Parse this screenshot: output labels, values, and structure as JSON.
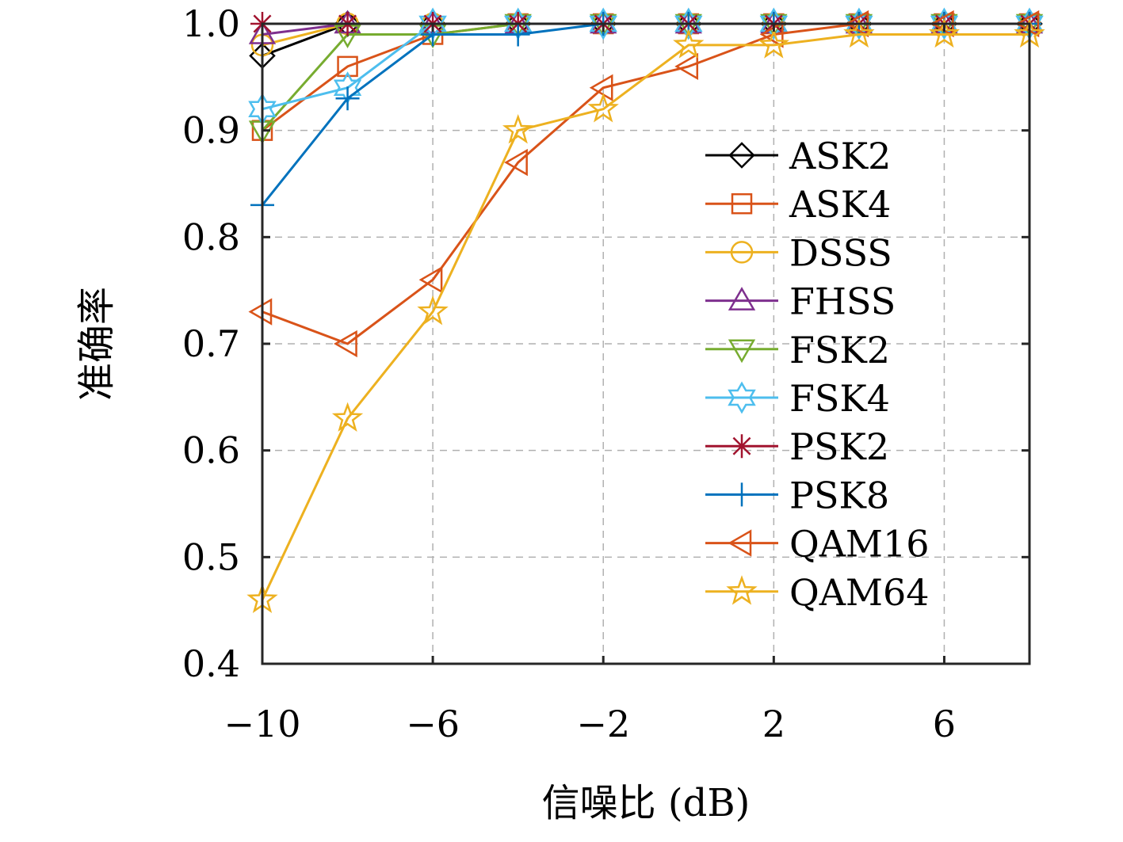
{
  "chart_data": {
    "type": "line",
    "title": "",
    "xlabel": "信噪比 (dB)",
    "ylabel": "准确率",
    "xlim": [
      -10,
      8
    ],
    "ylim": [
      0.4,
      1.0
    ],
    "xticks": [
      -10,
      -6,
      -2,
      2,
      6
    ],
    "xtick_labels": [
      "−10",
      "−6",
      "−2",
      "2",
      "6"
    ],
    "yticks": [
      0.4,
      0.5,
      0.6,
      0.7,
      0.8,
      0.9,
      1.0
    ],
    "ytick_labels": [
      "0.4",
      "0.5",
      "0.6",
      "0.7",
      "0.8",
      "0.9",
      "1.0"
    ],
    "grid": true,
    "legend_position": "right",
    "x": [
      -10,
      -8,
      -6,
      -4,
      -2,
      0,
      2,
      4,
      6,
      8
    ],
    "series": [
      {
        "name": "ASK2",
        "color": "#000000",
        "marker": "diamond",
        "values": [
          0.97,
          1.0,
          1.0,
          1.0,
          1.0,
          1.0,
          1.0,
          1.0,
          1.0,
          1.0
        ]
      },
      {
        "name": "ASK4",
        "color": "#D95319",
        "marker": "square",
        "values": [
          0.9,
          0.96,
          0.99,
          1.0,
          1.0,
          1.0,
          1.0,
          1.0,
          1.0,
          1.0
        ]
      },
      {
        "name": "DSSS",
        "color": "#EDB120",
        "marker": "circle",
        "values": [
          0.98,
          1.0,
          1.0,
          1.0,
          1.0,
          1.0,
          1.0,
          1.0,
          1.0,
          1.0
        ]
      },
      {
        "name": "FHSS",
        "color": "#7E2F8E",
        "marker": "triangle-up",
        "values": [
          0.99,
          1.0,
          1.0,
          1.0,
          1.0,
          1.0,
          1.0,
          1.0,
          1.0,
          1.0
        ]
      },
      {
        "name": "FSK2",
        "color": "#77AC30",
        "marker": "triangle-down",
        "values": [
          0.9,
          0.99,
          0.99,
          1.0,
          1.0,
          1.0,
          1.0,
          1.0,
          1.0,
          1.0
        ]
      },
      {
        "name": "FSK4",
        "color": "#4DBEEE",
        "marker": "hexagram",
        "values": [
          0.92,
          0.94,
          1.0,
          1.0,
          1.0,
          1.0,
          1.0,
          1.0,
          1.0,
          1.0
        ]
      },
      {
        "name": "PSK2",
        "color": "#A2142F",
        "marker": "asterisk",
        "values": [
          1.0,
          1.0,
          1.0,
          1.0,
          1.0,
          1.0,
          1.0,
          1.0,
          1.0,
          1.0
        ]
      },
      {
        "name": "PSK8",
        "color": "#0072BD",
        "marker": "plus",
        "values": [
          0.83,
          0.93,
          0.99,
          0.99,
          1.0,
          1.0,
          1.0,
          1.0,
          1.0,
          1.0
        ]
      },
      {
        "name": "QAM16",
        "color": "#D95319",
        "marker": "triangle-left",
        "values": [
          0.73,
          0.7,
          0.76,
          0.87,
          0.94,
          0.96,
          0.99,
          1.0,
          1.0,
          1.0
        ]
      },
      {
        "name": "QAM64",
        "color": "#EDB120",
        "marker": "pentagram",
        "values": [
          0.46,
          0.63,
          0.73,
          0.9,
          0.92,
          0.98,
          0.98,
          0.99,
          0.99,
          0.99
        ]
      }
    ]
  }
}
